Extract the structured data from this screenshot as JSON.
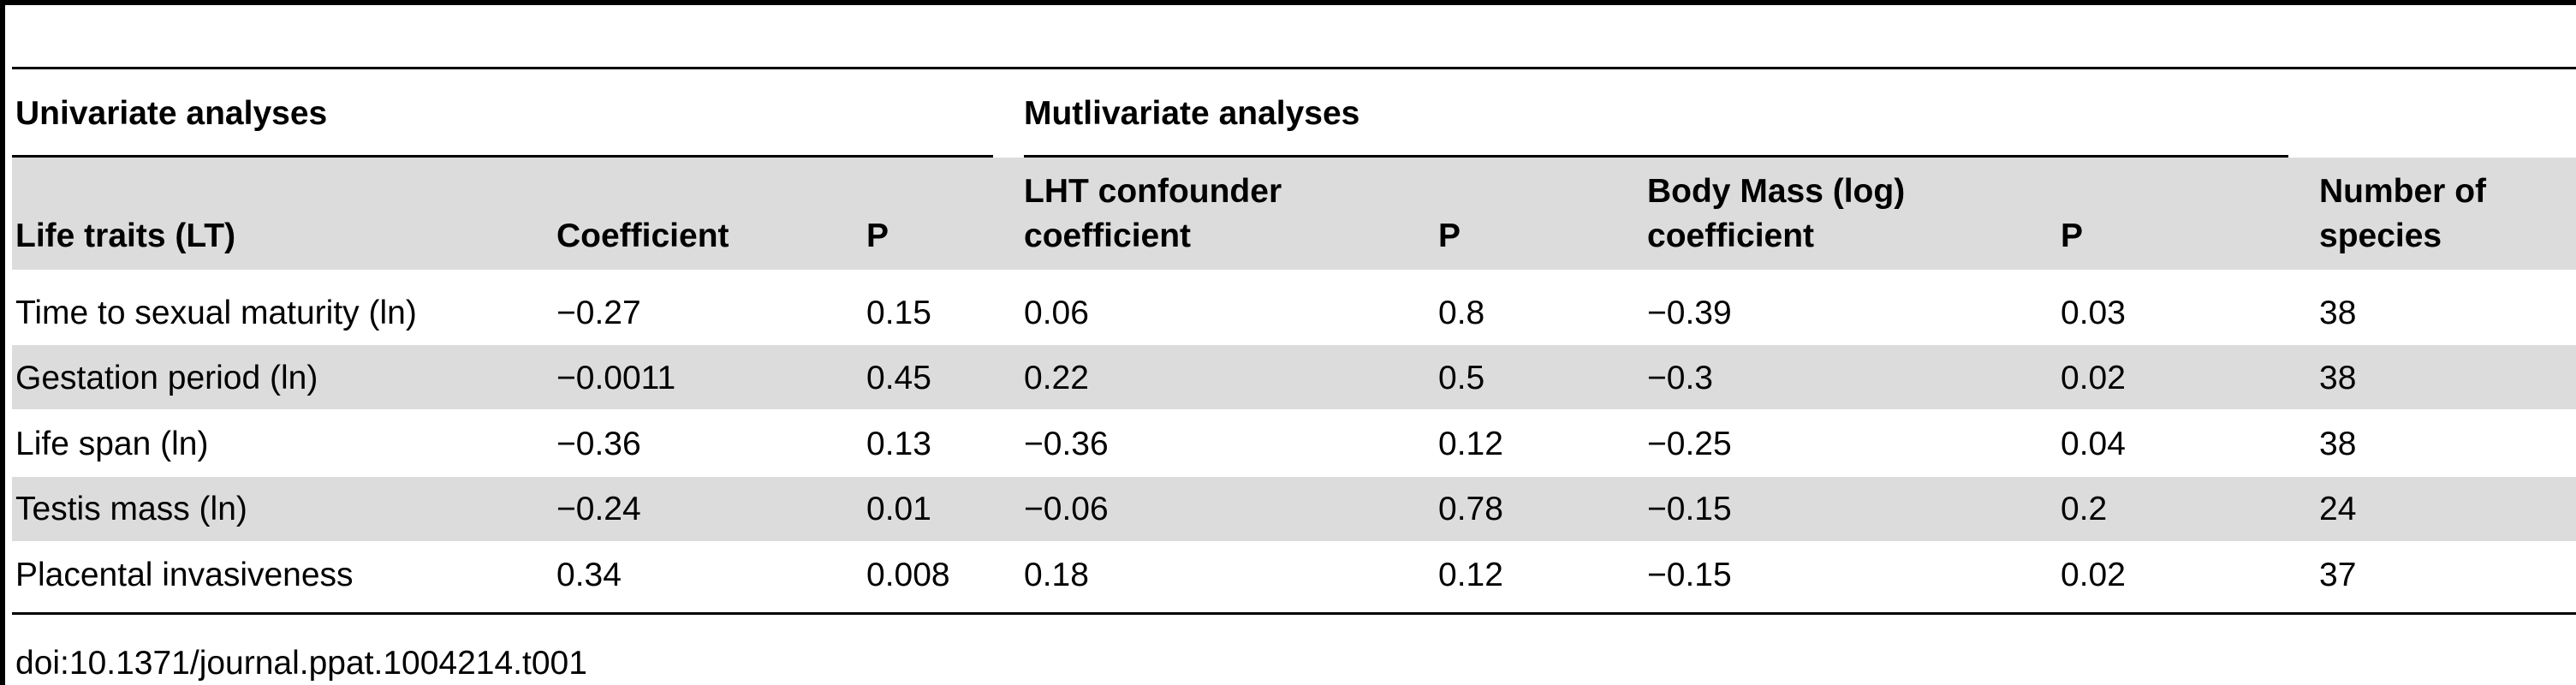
{
  "table": {
    "group_headers": {
      "univariate": "Univariate analyses",
      "multivariate": "Mutlivariate analyses"
    },
    "column_headers": {
      "life_traits": "Life traits (LT)",
      "coefficient": "Coefficient",
      "p_uni": "P",
      "lht_line1": "LHT confounder",
      "lht_line2": "coefficient",
      "p_lht": "P",
      "bodymass_line1": "Body Mass (log)",
      "bodymass_line2": "coefficient",
      "p_bodymass": "P",
      "species_line1": "Number of",
      "species_line2": "species"
    },
    "rows": [
      {
        "trait": "Time to sexual maturity (ln)",
        "coefficient": "−0.27",
        "p_uni": "0.15",
        "lht_coefficient": "0.06",
        "p_lht": "0.8",
        "bodymass_coefficient": "−0.39",
        "p_bodymass": "0.03",
        "species": "38"
      },
      {
        "trait": "Gestation period (ln)",
        "coefficient": "−0.0011",
        "p_uni": "0.45",
        "lht_coefficient": "0.22",
        "p_lht": "0.5",
        "bodymass_coefficient": "−0.3",
        "p_bodymass": "0.02",
        "species": "38"
      },
      {
        "trait": "Life span (ln)",
        "coefficient": "−0.36",
        "p_uni": "0.13",
        "lht_coefficient": "−0.36",
        "p_lht": "0.12",
        "bodymass_coefficient": "−0.25",
        "p_bodymass": "0.04",
        "species": "38"
      },
      {
        "trait": "Testis mass (ln)",
        "coefficient": "−0.24",
        "p_uni": "0.01",
        "lht_coefficient": "−0.06",
        "p_lht": "0.78",
        "bodymass_coefficient": "−0.15",
        "p_bodymass": "0.2",
        "species": "24"
      },
      {
        "trait": "Placental invasiveness",
        "coefficient": "0.34",
        "p_uni": "0.008",
        "lht_coefficient": "0.18",
        "p_lht": "0.12",
        "bodymass_coefficient": "−0.15",
        "p_bodymass": "0.02",
        "species": "37"
      }
    ],
    "doi": "doi:10.1371/journal.ppat.1004214.t001"
  },
  "colors": {
    "shaded_band": "#dcdcdc",
    "rule": "#000000",
    "text": "#000000"
  }
}
